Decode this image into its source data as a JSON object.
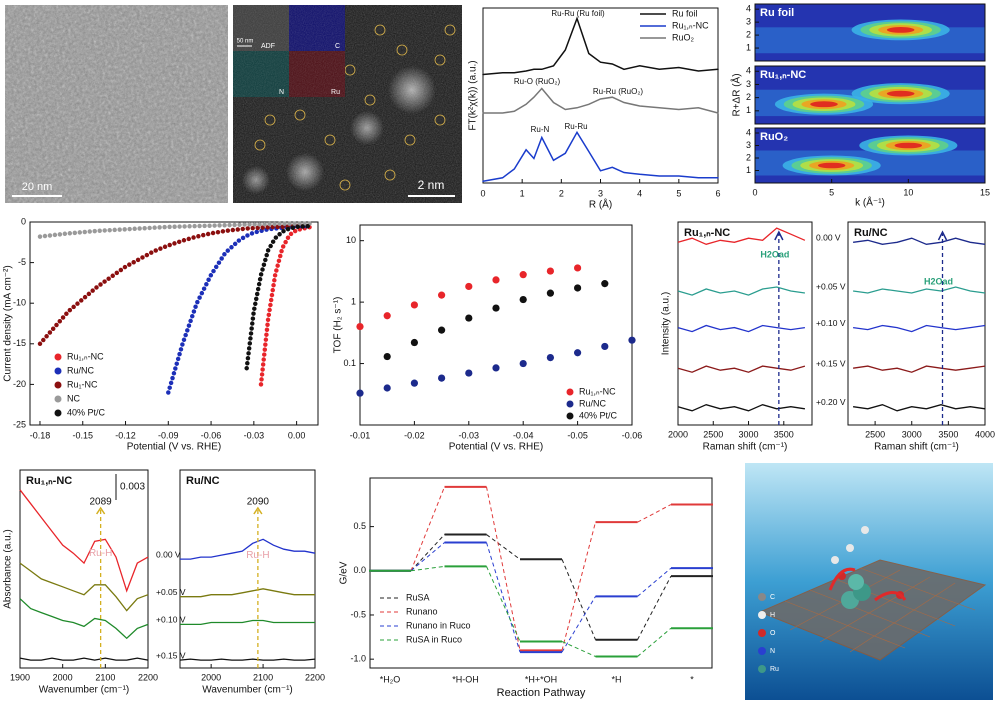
{
  "images": {
    "tem": {
      "scale_bar": "20 nm"
    },
    "haadf": {
      "scale_bar": "2 nm",
      "inset_scale_bar": "50 nm",
      "maps": [
        "ADF",
        "C",
        "N",
        "Ru"
      ]
    },
    "illustration": {
      "legend": [
        "C",
        "H",
        "O",
        "N",
        "Ru"
      ]
    }
  },
  "chart_data": [
    {
      "type": "line",
      "x_label": "R (Å)",
      "y_label": "FT(k²χ(k)) (a.u.)",
      "x": [
        0,
        0.5,
        0.8,
        1.1,
        1.3,
        1.5,
        1.8,
        2.1,
        2.4,
        2.7,
        3.0,
        3.3,
        3.6,
        4,
        4.5,
        5,
        5.5,
        6
      ],
      "xlim": [
        0,
        6
      ],
      "xticks": [
        0,
        1,
        2,
        3,
        4,
        5,
        6
      ],
      "ylim": [
        0,
        10
      ],
      "legend": "upper right",
      "series": [
        {
          "name": "Ru foil",
          "color": "#111111",
          "values": [
            6.2,
            6.3,
            6.3,
            6.4,
            6.5,
            6.5,
            6.7,
            7.6,
            9.4,
            7.4,
            6.9,
            6.8,
            6.5,
            6.7,
            6.5,
            6.6,
            6.4,
            6.5
          ]
        },
        {
          "name": "Ru₁,ₙ-NC",
          "color": "#1a3ccc",
          "values": [
            0.1,
            0.3,
            0.8,
            1.9,
            1.4,
            2.6,
            1.3,
            1.7,
            2.9,
            1.8,
            0.7,
            0.9,
            0.6,
            0.5,
            0.4,
            0.4,
            0.3,
            0.3
          ]
        },
        {
          "name": "RuO₂",
          "color": "#777777",
          "values": [
            4.0,
            4.0,
            4.1,
            4.5,
            4.9,
            5.4,
            4.6,
            4.2,
            4.3,
            4.5,
            4.8,
            4.9,
            4.6,
            4.4,
            4.3,
            4.2,
            4.3,
            4.0
          ]
        }
      ],
      "annotations": [
        "Ru-Ru (Ru foil)",
        "Ru-O (RuO₂)",
        "Ru-Ru (RuO₂)",
        "Ru-N",
        "Ru-Ru"
      ]
    },
    {
      "type": "contour",
      "x_label": "k (Å⁻¹)",
      "y_label": "R+ΔR (Å)",
      "xlim": [
        0,
        15
      ],
      "xticks": [
        0,
        5,
        10,
        15
      ],
      "ylim": [
        0,
        4.4
      ],
      "yticks": [
        1,
        2,
        3,
        4
      ],
      "panels": [
        {
          "name": "Ru foil",
          "peaks": [
            {
              "k": 9.5,
              "r": 2.4
            }
          ]
        },
        {
          "name": "Ru₁,ₙ-NC",
          "peaks": [
            {
              "k": 4.5,
              "r": 1.5
            },
            {
              "k": 9.5,
              "r": 2.3
            }
          ]
        },
        {
          "name": "RuO₂",
          "peaks": [
            {
              "k": 5,
              "r": 1.4
            },
            {
              "k": 10,
              "r": 3.0
            }
          ]
        }
      ]
    },
    {
      "type": "line",
      "markers": true,
      "x_label": "Potential (V vs. RHE)",
      "y_label": "Current density (mA cm⁻²)",
      "x": [
        -0.18,
        -0.16,
        -0.14,
        -0.12,
        -0.1,
        -0.09,
        -0.08,
        -0.07,
        -0.06,
        -0.05,
        -0.04,
        -0.035,
        -0.03,
        -0.025,
        -0.02,
        -0.015,
        -0.01,
        -0.005,
        0,
        0.01
      ],
      "xlim": [
        -0.187,
        0.015
      ],
      "xticks": [
        -0.18,
        -0.15,
        -0.12,
        -0.09,
        -0.06,
        -0.03,
        {
          "value": 0,
          "label": "0.00"
        }
      ],
      "ylim": [
        -25,
        0
      ],
      "yticks": [
        0,
        -5,
        -10,
        -15,
        -20,
        -25
      ],
      "legend": "lower left",
      "series": [
        {
          "name": "Ru₁,ₙ-NC",
          "color": "#e8252a",
          "values": [
            null,
            null,
            null,
            null,
            null,
            null,
            null,
            null,
            null,
            null,
            null,
            null,
            null,
            -20,
            -12,
            -6.5,
            -3.2,
            -1.6,
            -1.0,
            -0.6
          ]
        },
        {
          "name": "Ru/NC",
          "color": "#1c2fb8",
          "values": [
            null,
            null,
            null,
            null,
            null,
            -21,
            -15,
            -10,
            -6.5,
            -3.8,
            -2.2,
            -1.7,
            -1.3,
            -1.1,
            -0.9,
            -0.8,
            -0.7,
            -0.6,
            -0.5,
            -0.5
          ]
        },
        {
          "name": "Ru₁-NC",
          "color": "#8b0f0f",
          "values": [
            -15,
            -11,
            -8,
            -5.5,
            -3.6,
            -2.9,
            -2.3,
            -1.8,
            -1.4,
            -1.1,
            -0.9,
            -0.8,
            -0.75,
            -0.7,
            -0.65,
            -0.6,
            -0.6,
            -0.55,
            -0.5,
            -0.5
          ]
        },
        {
          "name": "NC",
          "color": "#9a9a9a",
          "values": [
            -1.8,
            -1.4,
            -1.1,
            -0.9,
            -0.7,
            -0.6,
            -0.55,
            -0.5,
            -0.45,
            -0.4,
            -0.35,
            -0.3,
            -0.3,
            -0.3,
            -0.25,
            -0.25,
            -0.2,
            -0.2,
            -0.2,
            -0.2
          ]
        },
        {
          "name": "40% Pt/C",
          "color": "#111111",
          "values": [
            null,
            null,
            null,
            null,
            null,
            null,
            null,
            null,
            null,
            null,
            null,
            -18,
            -11,
            -6.5,
            -3.5,
            -2,
            -1.2,
            -0.8,
            -0.6,
            -0.5
          ]
        }
      ]
    },
    {
      "type": "line",
      "markers": true,
      "log_y": true,
      "x_label": "Potential (V vs. RHE)",
      "y_label": "TOF (H₂ s⁻¹)",
      "x": [
        -0.01,
        -0.015,
        -0.02,
        -0.025,
        -0.03,
        -0.035,
        -0.04,
        -0.045,
        -0.05,
        -0.055,
        -0.06
      ],
      "xlim": [
        -0.01,
        -0.06
      ],
      "xticks": [
        -0.01,
        -0.02,
        -0.03,
        -0.04,
        -0.05,
        -0.06
      ],
      "ylim": [
        0.01,
        18
      ],
      "yticks": [
        0.1,
        1,
        10
      ],
      "legend": "lower right",
      "series": [
        {
          "name": "Ru₁,ₙ-NC",
          "color": "#e8252a",
          "values": [
            0.4,
            0.6,
            0.9,
            1.3,
            1.8,
            2.3,
            2.8,
            3.2,
            3.6,
            null,
            null
          ]
        },
        {
          "name": "Ru/NC",
          "color": "#1c2a8c",
          "values": [
            0.033,
            0.04,
            0.048,
            0.058,
            0.07,
            0.085,
            0.1,
            0.125,
            0.15,
            0.19,
            0.24
          ]
        },
        {
          "name": "40% Pt/C",
          "color": "#111111",
          "values": [
            null,
            0.13,
            0.22,
            0.35,
            0.55,
            0.8,
            1.1,
            1.4,
            1.7,
            2.0,
            null
          ]
        }
      ]
    },
    {
      "type": "spectra",
      "y_label": "Intensity (a.u.)",
      "ylim": [
        0,
        5
      ],
      "potentials": [
        "0.00 V",
        "+0.05 V",
        "+0.10 V",
        "+0.15 V",
        "+0.20 V"
      ],
      "panels": [
        {
          "name": "Ru₁,ₙ-NC",
          "annotation": "H2Oad",
          "marker_x": 3430,
          "x_label": "Raman shift (cm⁻¹)",
          "xlim": [
            2000,
            3900
          ],
          "xticks": [
            2000,
            2500,
            3000,
            3500
          ],
          "x": [
            2000,
            2200,
            2400,
            2600,
            2800,
            3000,
            3200,
            3400,
            3600,
            3800
          ],
          "series": [
            {
              "color": "#e8252a",
              "values": [
                4.5,
                4.6,
                4.45,
                4.55,
                4.5,
                4.6,
                4.55,
                4.85,
                4.7,
                4.55
              ]
            },
            {
              "color": "#2a9d8f",
              "values": [
                3.3,
                3.2,
                3.35,
                3.25,
                3.3,
                3.2,
                3.35,
                3.4,
                3.3,
                3.25
              ]
            },
            {
              "color": "#2233cc",
              "values": [
                2.4,
                2.3,
                2.45,
                2.35,
                2.4,
                2.3,
                2.45,
                2.4,
                2.35,
                2.4
              ]
            },
            {
              "color": "#8b1a1a",
              "values": [
                1.4,
                1.3,
                1.45,
                1.35,
                1.4,
                1.3,
                1.45,
                1.4,
                1.35,
                1.45
              ]
            },
            {
              "color": "#111111",
              "values": [
                0.45,
                0.35,
                0.5,
                0.4,
                0.45,
                0.35,
                0.5,
                0.4,
                0.45,
                0.4
              ]
            }
          ]
        },
        {
          "name": "Ru/NC",
          "annotation": "H2Oad",
          "marker_x": 3420,
          "x_label": "Raman shift (cm⁻¹)",
          "xlim": [
            2130,
            4000
          ],
          "xticks": [
            2500,
            3000,
            3500,
            4000
          ],
          "x": [
            2200,
            2400,
            2600,
            2800,
            3000,
            3200,
            3400,
            3600,
            3800,
            4000
          ],
          "series": [
            {
              "color": "#1c2a8c",
              "values": [
                4.5,
                4.55,
                4.45,
                4.5,
                4.6,
                4.45,
                4.5,
                4.6,
                4.5,
                4.45
              ]
            },
            {
              "color": "#2a9d8f",
              "values": [
                3.3,
                3.25,
                3.35,
                3.3,
                3.25,
                3.35,
                3.3,
                3.4,
                3.3,
                3.25
              ]
            },
            {
              "color": "#2233cc",
              "values": [
                2.4,
                2.35,
                2.45,
                2.4,
                2.3,
                2.45,
                2.4,
                2.35,
                2.4,
                2.45
              ]
            },
            {
              "color": "#8b1a1a",
              "values": [
                1.4,
                1.45,
                1.35,
                1.4,
                1.3,
                1.45,
                1.4,
                1.35,
                1.4,
                1.45
              ]
            },
            {
              "color": "#111111",
              "values": [
                0.45,
                0.4,
                0.5,
                0.35,
                0.45,
                0.4,
                0.5,
                0.4,
                0.45,
                0.4
              ]
            }
          ]
        }
      ]
    },
    {
      "type": "spectra",
      "y_label": "Absorbance (a.u.)",
      "ylim": [
        0,
        10
      ],
      "potentials": [
        "0.00 V",
        "+0.05 V",
        "+0.10 V",
        "+0.15 V"
      ],
      "panels": [
        {
          "name": "Ru₁,ₙ-NC",
          "annotation": "Ru-H",
          "peak_label": "2089",
          "scale_label": "0.003",
          "marker_x": 2089,
          "x_label": "Wavenumber (cm⁻¹)",
          "xlim": [
            1900,
            2200
          ],
          "xticks": [
            1900,
            2000,
            2100,
            2200
          ],
          "x": [
            1900,
            1925,
            1950,
            1975,
            2000,
            2025,
            2050,
            2075,
            2100,
            2125,
            2150,
            2175,
            2200
          ],
          "series": [
            {
              "color": "#e8252a",
              "values": [
                9.0,
                8.3,
                7.6,
                6.9,
                6.2,
                5.8,
                5.3,
                6.4,
                6.5,
                5.6,
                3.9,
                5.3,
                5.6
              ]
            },
            {
              "color": "#7a7a10",
              "values": [
                5.3,
                4.9,
                4.5,
                4.3,
                4.1,
                3.9,
                3.7,
                4.2,
                4.2,
                3.6,
                2.9,
                3.5,
                3.7
              ]
            },
            {
              "color": "#1f8a2a",
              "values": [
                3.5,
                3.0,
                2.8,
                2.6,
                2.4,
                2.3,
                2.1,
                2.5,
                2.4,
                2.0,
                1.5,
                2.0,
                2.2
              ]
            },
            {
              "color": "#111111",
              "values": [
                0.5,
                0.4,
                0.4,
                0.5,
                0.4,
                0.4,
                0.5,
                0.4,
                0.5,
                0.4,
                0.4,
                0.5,
                0.4
              ]
            }
          ]
        },
        {
          "name": "Ru/NC",
          "annotation": "Ru-H",
          "peak_label": "2090",
          "marker_x": 2090,
          "x_label": "Wavenumber (cm⁻¹)",
          "xlim": [
            1940,
            2200
          ],
          "xticks": [
            2000,
            2100,
            2200
          ],
          "x": [
            1940,
            1960,
            1980,
            2000,
            2020,
            2040,
            2060,
            2080,
            2100,
            2120,
            2140,
            2160,
            2180,
            2200
          ],
          "series": [
            {
              "color": "#2233cc",
              "values": [
                5.5,
                5.5,
                5.6,
                5.6,
                5.7,
                5.8,
                5.9,
                6.3,
                6.5,
                6.2,
                6.0,
                5.9,
                5.9,
                5.8
              ]
            },
            {
              "color": "#7a7a10",
              "values": [
                3.6,
                3.6,
                3.6,
                3.7,
                3.7,
                3.7,
                3.8,
                3.9,
                4.0,
                3.9,
                3.8,
                3.7,
                3.7,
                3.7
              ]
            },
            {
              "color": "#1f8a2a",
              "values": [
                2.2,
                2.2,
                2.2,
                2.3,
                2.3,
                2.3,
                2.3,
                2.4,
                2.4,
                2.3,
                2.3,
                2.3,
                2.3,
                2.3
              ]
            },
            {
              "color": "#111111",
              "values": [
                0.4,
                0.45,
                0.4,
                0.4,
                0.45,
                0.4,
                0.4,
                0.45,
                0.4,
                0.4,
                0.45,
                0.4,
                0.4,
                0.45
              ]
            }
          ]
        }
      ]
    },
    {
      "type": "energy",
      "x_label": "Reaction Pathway",
      "y_label": "G/eV",
      "categories": [
        "*H₂O",
        "*H-OH",
        "*H+*OH",
        "*H",
        "*"
      ],
      "ylim": [
        -1.1,
        1.05
      ],
      "yticks": [
        0.5,
        {
          "value": 0,
          "label": "0.0"
        },
        -0.5,
        {
          "value": -1,
          "label": "-1.0"
        }
      ],
      "legend": "lower left",
      "series": [
        {
          "name": "RuSA",
          "color": "#222222",
          "values": [
            0,
            0.41,
            0.13,
            -0.78,
            -0.06
          ]
        },
        {
          "name": "Runano",
          "color": "#e03a3a",
          "values": [
            0,
            0.95,
            -0.9,
            0.55,
            0.75
          ]
        },
        {
          "name": "Runano in Ruco",
          "color": "#2a3fd0",
          "values": [
            0,
            0.32,
            -0.92,
            -0.29,
            0.03
          ]
        },
        {
          "name": "RuSA in Ruco",
          "color": "#2aa03a",
          "values": [
            0,
            0.05,
            -0.8,
            -0.97,
            -0.65
          ]
        }
      ]
    }
  ]
}
